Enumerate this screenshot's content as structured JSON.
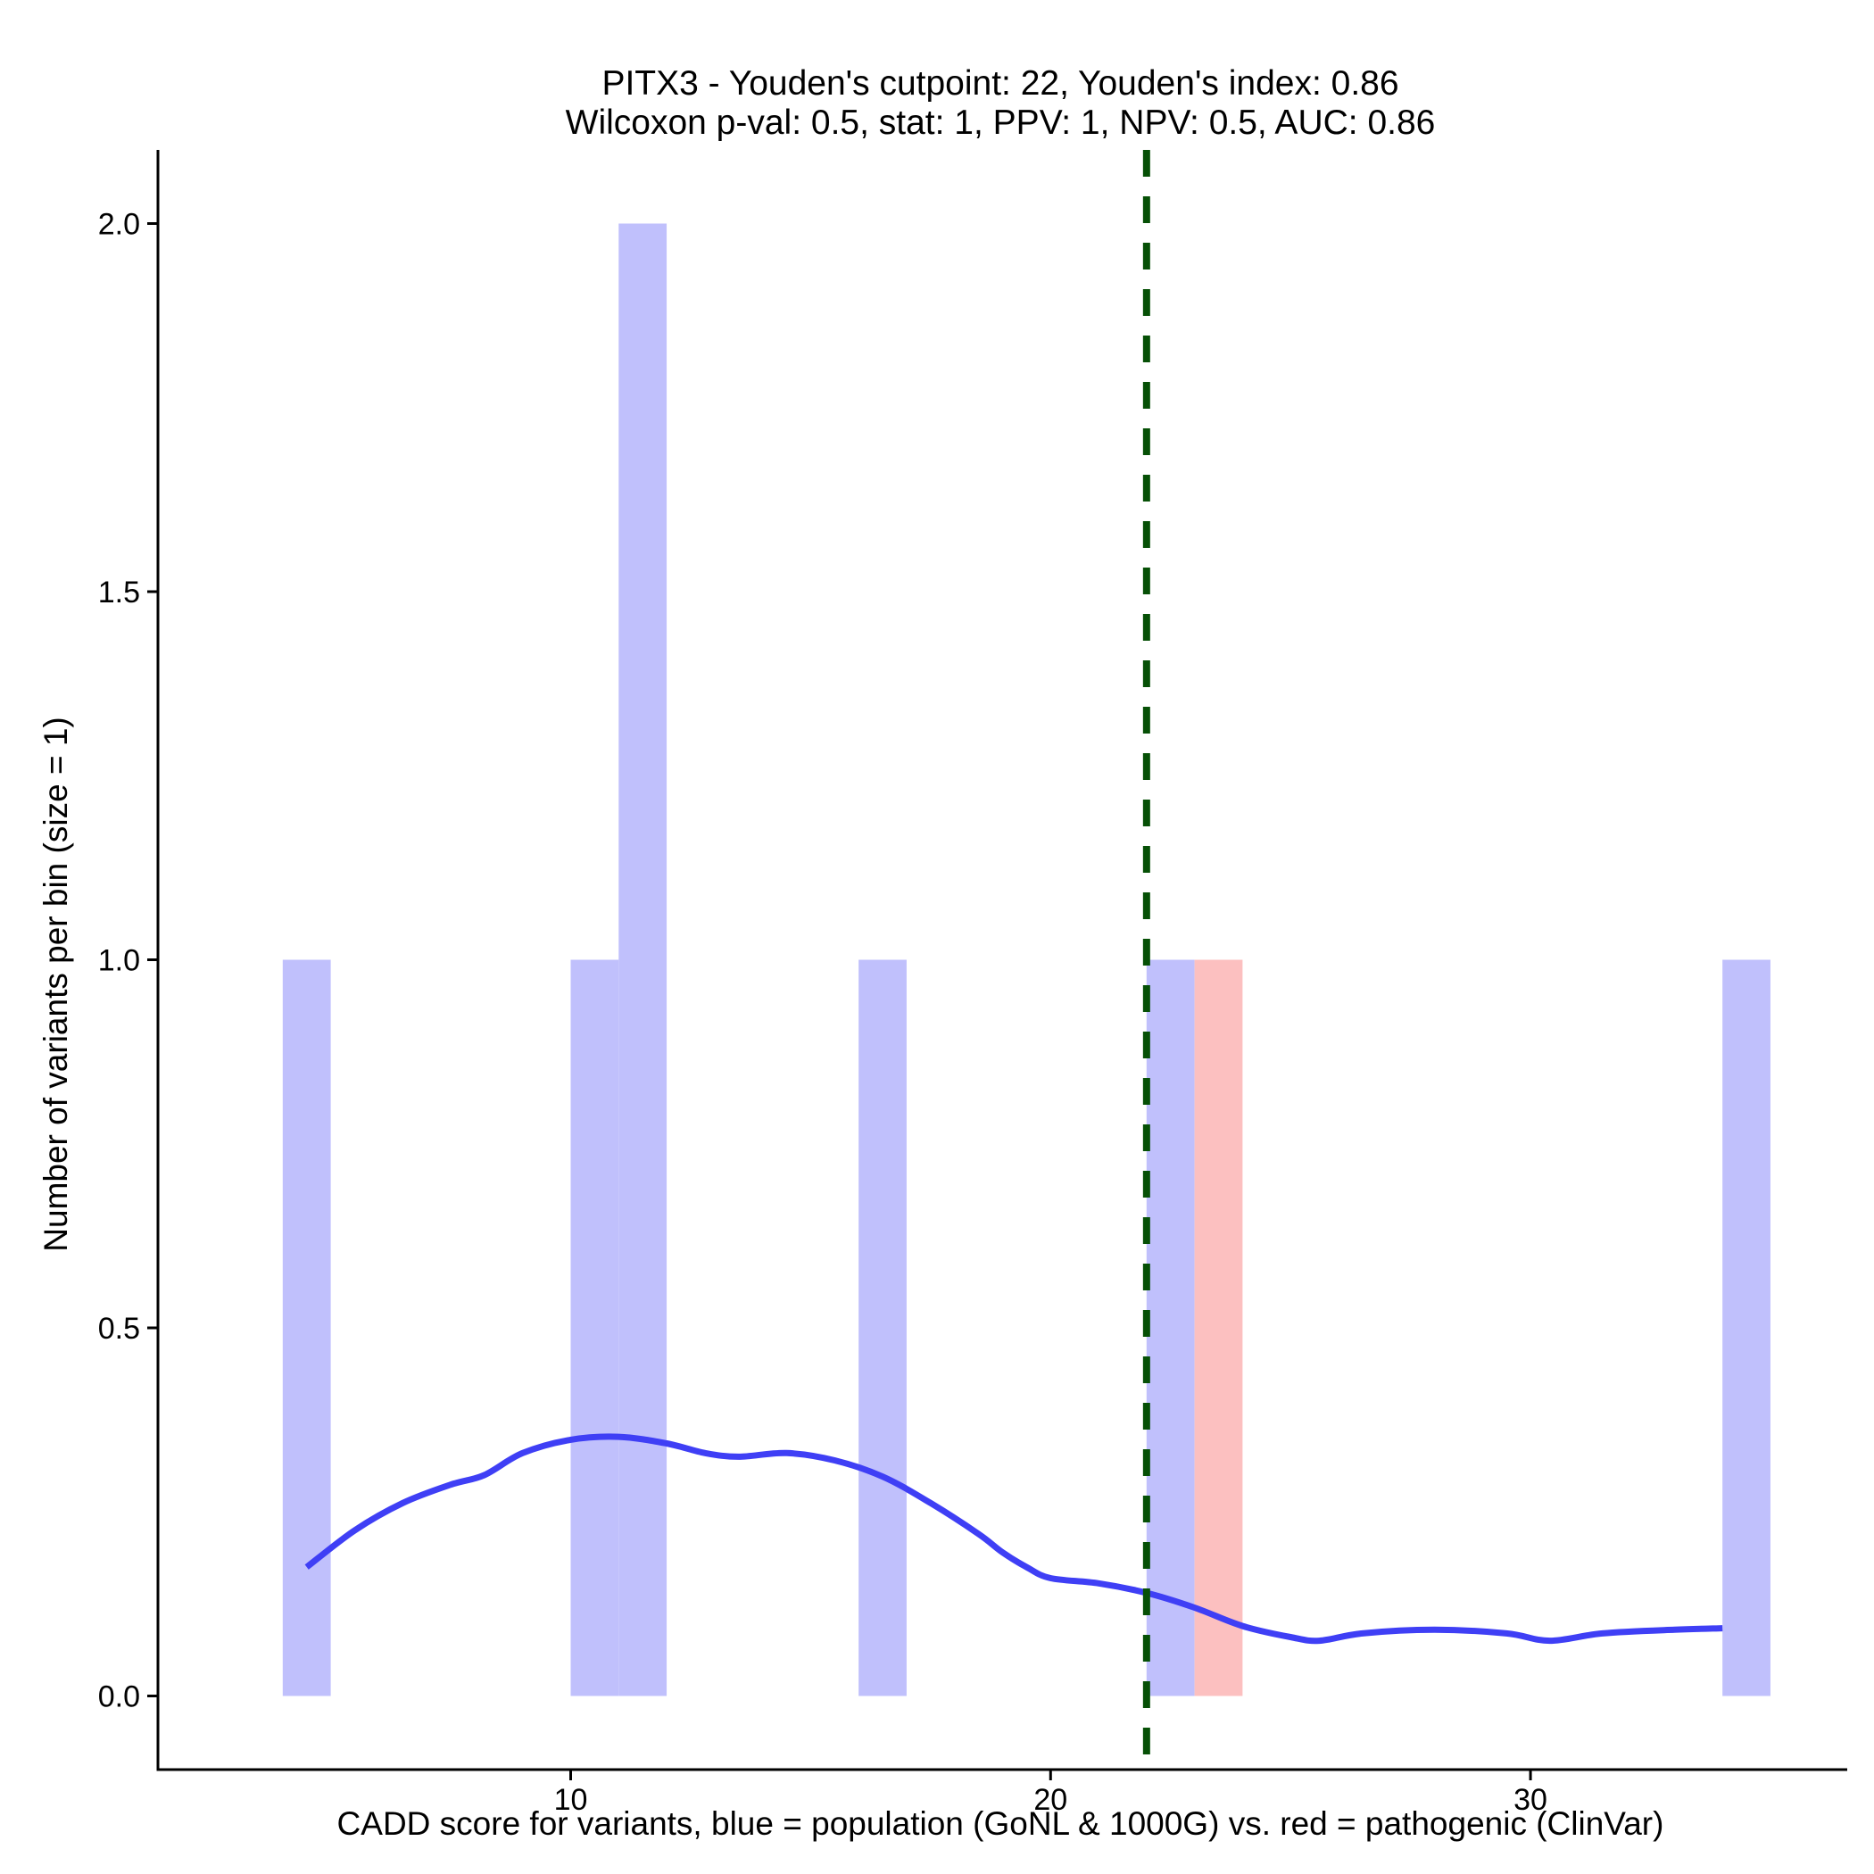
{
  "chart_data": {
    "type": "bar",
    "title": "PITX3 - Youden's cutpoint: 22, Youden's index: 0.86",
    "subtitle": "Wilcoxon p-val: 0.5, stat: 1, PPV: 1, NPV: 0.5, AUC: 0.86",
    "xlabel": "CADD score for variants, blue = population (GoNL & 1000G) vs. red = pathogenic (ClinVar)",
    "ylabel": "Number of variants per bin (size = 1)",
    "xlim": [
      1.4,
      36.6
    ],
    "ylim": [
      -0.1,
      2.1
    ],
    "x_ticks": [
      10,
      20,
      30
    ],
    "x_tick_labels": [
      "10",
      "20",
      "30"
    ],
    "y_ticks": [
      0,
      0.5,
      1,
      1.5,
      2
    ],
    "y_tick_labels": [
      "0.0",
      "0.5",
      "1.0",
      "1.5",
      "2.0"
    ],
    "bin_width": 1,
    "series": [
      {
        "name": "population (GoNL & 1000G)",
        "color": "#c0c0fc",
        "bins": [
          {
            "x0": 4,
            "x1": 5,
            "count": 1
          },
          {
            "x0": 10,
            "x1": 11,
            "count": 1
          },
          {
            "x0": 11,
            "x1": 12,
            "count": 2
          },
          {
            "x0": 16,
            "x1": 17,
            "count": 1
          },
          {
            "x0": 22,
            "x1": 23,
            "count": 1
          },
          {
            "x0": 34,
            "x1": 35,
            "count": 1
          }
        ]
      },
      {
        "name": "pathogenic (ClinVar)",
        "color": "#fcc0c0",
        "bins": [
          {
            "x0": 23,
            "x1": 24,
            "count": 1
          }
        ]
      }
    ],
    "density_curve": {
      "color": "#3f3ff5",
      "x": [
        4.5,
        5.5,
        6.5,
        7.5,
        8.2,
        9,
        10,
        11,
        12,
        12.8,
        13.5,
        14.5,
        15.5,
        16.5,
        17.5,
        18.5,
        19,
        19.5,
        20,
        21,
        22,
        23,
        24,
        25,
        25.6,
        26.5,
        28,
        29.5,
        30.4,
        31.5,
        33,
        34
      ],
      "y": [
        0.175,
        0.225,
        0.262,
        0.287,
        0.3,
        0.33,
        0.348,
        0.352,
        0.343,
        0.33,
        0.325,
        0.33,
        0.32,
        0.298,
        0.262,
        0.22,
        0.195,
        0.175,
        0.16,
        0.153,
        0.14,
        0.12,
        0.095,
        0.08,
        0.075,
        0.085,
        0.09,
        0.085,
        0.075,
        0.085,
        0.09,
        0.092
      ]
    },
    "cutpoint": {
      "x": 22,
      "color": "#065006",
      "style": "dashed"
    }
  }
}
